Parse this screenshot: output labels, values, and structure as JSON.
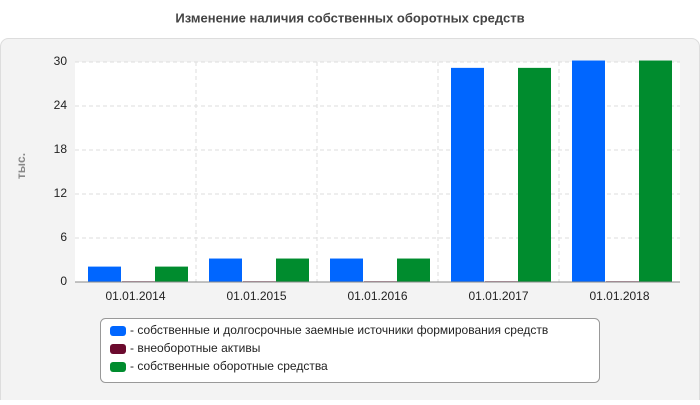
{
  "chart_data": {
    "type": "bar",
    "title": "Изменение наличия собственных оборотных средств",
    "y_label": "тыс.",
    "categories": [
      "01.01.2014",
      "01.01.2015",
      "01.01.2016",
      "01.01.2017",
      "01.01.2018"
    ],
    "series": [
      {
        "name": "- собственные и долгосрочные заемные источники формирования средств",
        "color": "#0066ff",
        "values": [
          2.1,
          3.2,
          3.2,
          29.2,
          30.2
        ]
      },
      {
        "name": "- внеоборотные активы",
        "color": "#6b0a2e",
        "values": [
          0.1,
          0.1,
          0.1,
          0.1,
          0.1
        ]
      },
      {
        "name": "- собственные оборотные средства",
        "color": "#008c2e",
        "values": [
          2.1,
          3.2,
          3.2,
          29.2,
          30.2
        ]
      }
    ],
    "ylim": [
      0,
      30
    ],
    "yticks": [
      0,
      6,
      12,
      18,
      24,
      30
    ],
    "grid": true
  }
}
